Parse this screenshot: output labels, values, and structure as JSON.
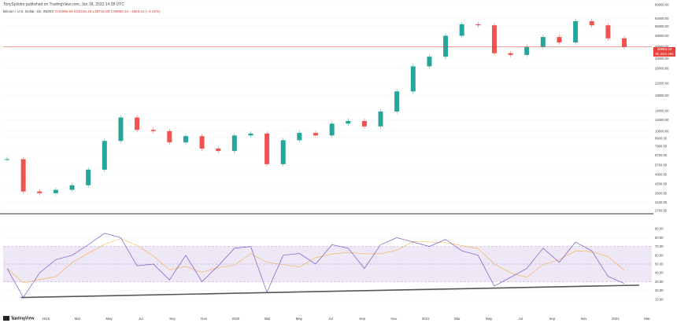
{
  "header": {
    "published_by": "TonySpilotro published on TradingView.com, Jan 18, 2022 14:28 UTC"
  },
  "symbol": {
    "name": "Bitcoin / U.S. Dollar, 1D, INDEX",
    "ohlc": "O41986.90 H42226.16 L39715.93 C39984.34 −1683.15 (−4.02%)"
  },
  "price_badge": {
    "value": "39984.34",
    "sub": "5h 31m 26s"
  },
  "footer": {
    "logo": "TradingView"
  },
  "colors": {
    "up": "#26a69a",
    "down": "#ef5350",
    "rsi_line": "#7e57c2",
    "rsi_ma": "#f5b041",
    "rsi_band": "#ede7f6",
    "price_line": "#e8413a",
    "trendline": "#555555"
  },
  "chart_data": [
    {
      "type": "line",
      "title": "Bitcoin / U.S. Dollar, 1D, INDEX",
      "y_scale": "log",
      "ylim": [
        2700,
        80000
      ],
      "y_ticks": [
        "80000.00",
        "64000.00",
        "56000.00",
        "48000.00",
        "40000.00",
        "33000.00",
        "28000.00",
        "22000.00",
        "18000.00",
        "14000.00",
        "12000.00",
        "10000.00",
        "8900.00",
        "7800.00",
        "6700.00",
        "5700.00",
        "4900.00",
        "4200.00",
        "3600.00",
        "3100.00",
        "2700.00"
      ],
      "x_ticks": [
        "12",
        "2019",
        "Mar",
        "May",
        "Jul",
        "Sep",
        "Nov",
        "2020",
        "Mar",
        "May",
        "Jul",
        "Sep",
        "Nov",
        "2021",
        "Mar",
        "May",
        "Jul",
        "Sep",
        "Nov",
        "2022",
        "Mar"
      ],
      "x": [
        "2018-11",
        "2018-12",
        "2019-01",
        "2019-02",
        "2019-03",
        "2019-04",
        "2019-05",
        "2019-06",
        "2019-07",
        "2019-08",
        "2019-09",
        "2019-10",
        "2019-11",
        "2019-12",
        "2020-01",
        "2020-02",
        "2020-03",
        "2020-04",
        "2020-05",
        "2020-06",
        "2020-07",
        "2020-08",
        "2020-09",
        "2020-10",
        "2020-11",
        "2020-12",
        "2021-01",
        "2021-02",
        "2021-03",
        "2021-04",
        "2021-05",
        "2021-06",
        "2021-07",
        "2021-08",
        "2021-09",
        "2021-10",
        "2021-11",
        "2021-12",
        "2022-01"
      ],
      "values": [
        6300,
        3700,
        3600,
        3800,
        4100,
        5300,
        8500,
        12500,
        10200,
        10000,
        8300,
        9200,
        7500,
        7200,
        9300,
        9600,
        5800,
        8600,
        9700,
        9300,
        11300,
        11800,
        10800,
        13800,
        19200,
        29000,
        34000,
        48000,
        58000,
        57000,
        36000,
        35000,
        40000,
        47000,
        43000,
        61000,
        57000,
        46000,
        39984
      ],
      "current_price": 39984.34
    },
    {
      "type": "line",
      "title": "RSI (14)",
      "ylim": [
        0,
        100
      ],
      "y_ticks": [
        "90.00",
        "80.00",
        "70.00",
        "60.00",
        "50.00",
        "40.00",
        "30.00",
        "20.00",
        "10.00"
      ],
      "bands": [
        30,
        70
      ],
      "midline": 50,
      "x": [
        "2018-11",
        "2018-12",
        "2019-01",
        "2019-02",
        "2019-03",
        "2019-04",
        "2019-05",
        "2019-06",
        "2019-07",
        "2019-08",
        "2019-09",
        "2019-10",
        "2019-11",
        "2019-12",
        "2020-01",
        "2020-02",
        "2020-03",
        "2020-04",
        "2020-05",
        "2020-06",
        "2020-07",
        "2020-08",
        "2020-09",
        "2020-10",
        "2020-11",
        "2020-12",
        "2021-01",
        "2021-02",
        "2021-03",
        "2021-04",
        "2021-05",
        "2021-06",
        "2021-07",
        "2021-08",
        "2021-09",
        "2021-10",
        "2021-11",
        "2021-12",
        "2022-01"
      ],
      "values": [
        45,
        12,
        40,
        55,
        60,
        72,
        85,
        80,
        48,
        50,
        32,
        60,
        30,
        48,
        68,
        70,
        18,
        60,
        62,
        50,
        72,
        68,
        45,
        72,
        80,
        75,
        70,
        78,
        65,
        60,
        25,
        35,
        45,
        68,
        52,
        75,
        65,
        36,
        28
      ],
      "trendline": [
        12,
        26
      ]
    }
  ]
}
